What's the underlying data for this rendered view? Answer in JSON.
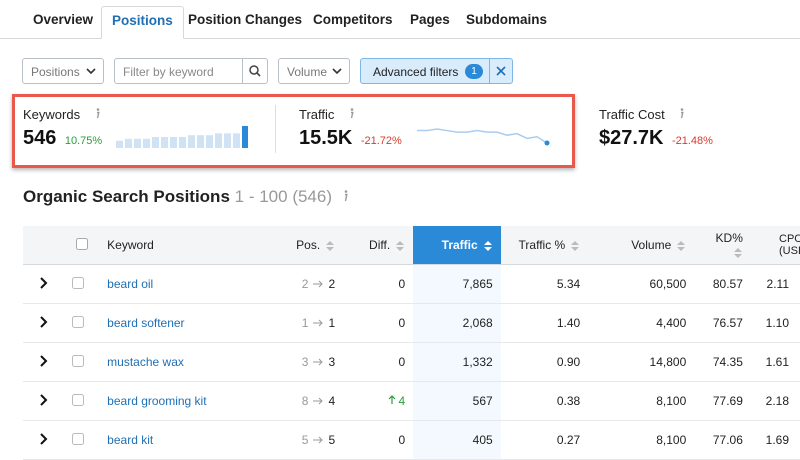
{
  "tabs": [
    "Overview",
    "Positions",
    "Position Changes",
    "Competitors",
    "Pages",
    "Subdomains"
  ],
  "filters": {
    "positions": "Positions",
    "keyword_placeholder": "Filter by keyword",
    "volume": "Volume",
    "advanced": "Advanced filters",
    "advanced_count": "1"
  },
  "metrics": [
    {
      "label": "Keywords",
      "value": "546",
      "change": "10.75%",
      "trend": [
        4,
        5,
        5,
        5,
        6,
        6,
        6,
        6,
        7,
        7,
        7,
        8,
        8,
        8,
        12
      ]
    },
    {
      "label": "Traffic",
      "value": "15.5K",
      "change": "-21.72%",
      "trend": [
        16.4,
        16.4,
        16.5,
        16.4,
        16.3,
        16.3,
        16.4,
        16.3,
        16.3,
        16.1,
        16.2,
        15.9,
        16.0,
        15.6
      ]
    },
    {
      "label": "Traffic Cost",
      "value": "$27.7K",
      "change": "-21.48%"
    }
  ],
  "section": {
    "title": "Organic Search Positions",
    "range": "1 - 100",
    "total": "(546)"
  },
  "table": {
    "headers": [
      "Keyword",
      "Pos.",
      "Diff.",
      "Traffic",
      "Traffic %",
      "Volume",
      "KD%",
      "CPC (USD)"
    ],
    "rows": [
      {
        "keyword": "beard oil",
        "pos_from": "2",
        "pos_to": "2",
        "diff": "0",
        "traffic": "7,865",
        "traffic_pct": "5.34",
        "volume": "60,500",
        "kd": "80.57",
        "cpc": "2.11"
      },
      {
        "keyword": "beard softener",
        "pos_from": "1",
        "pos_to": "1",
        "diff": "0",
        "traffic": "2,068",
        "traffic_pct": "1.40",
        "volume": "4,400",
        "kd": "76.57",
        "cpc": "1.10"
      },
      {
        "keyword": "mustache wax",
        "pos_from": "3",
        "pos_to": "3",
        "diff": "0",
        "traffic": "1,332",
        "traffic_pct": "0.90",
        "volume": "14,800",
        "kd": "74.35",
        "cpc": "1.61"
      },
      {
        "keyword": "beard grooming kit",
        "pos_from": "8",
        "pos_to": "4",
        "diff": "4",
        "diff_up": true,
        "traffic": "567",
        "traffic_pct": "0.38",
        "volume": "8,100",
        "kd": "77.69",
        "cpc": "2.18"
      },
      {
        "keyword": "beard kit",
        "pos_from": "5",
        "pos_to": "5",
        "diff": "0",
        "traffic": "405",
        "traffic_pct": "0.27",
        "volume": "8,100",
        "kd": "77.06",
        "cpc": "1.69"
      }
    ]
  }
}
